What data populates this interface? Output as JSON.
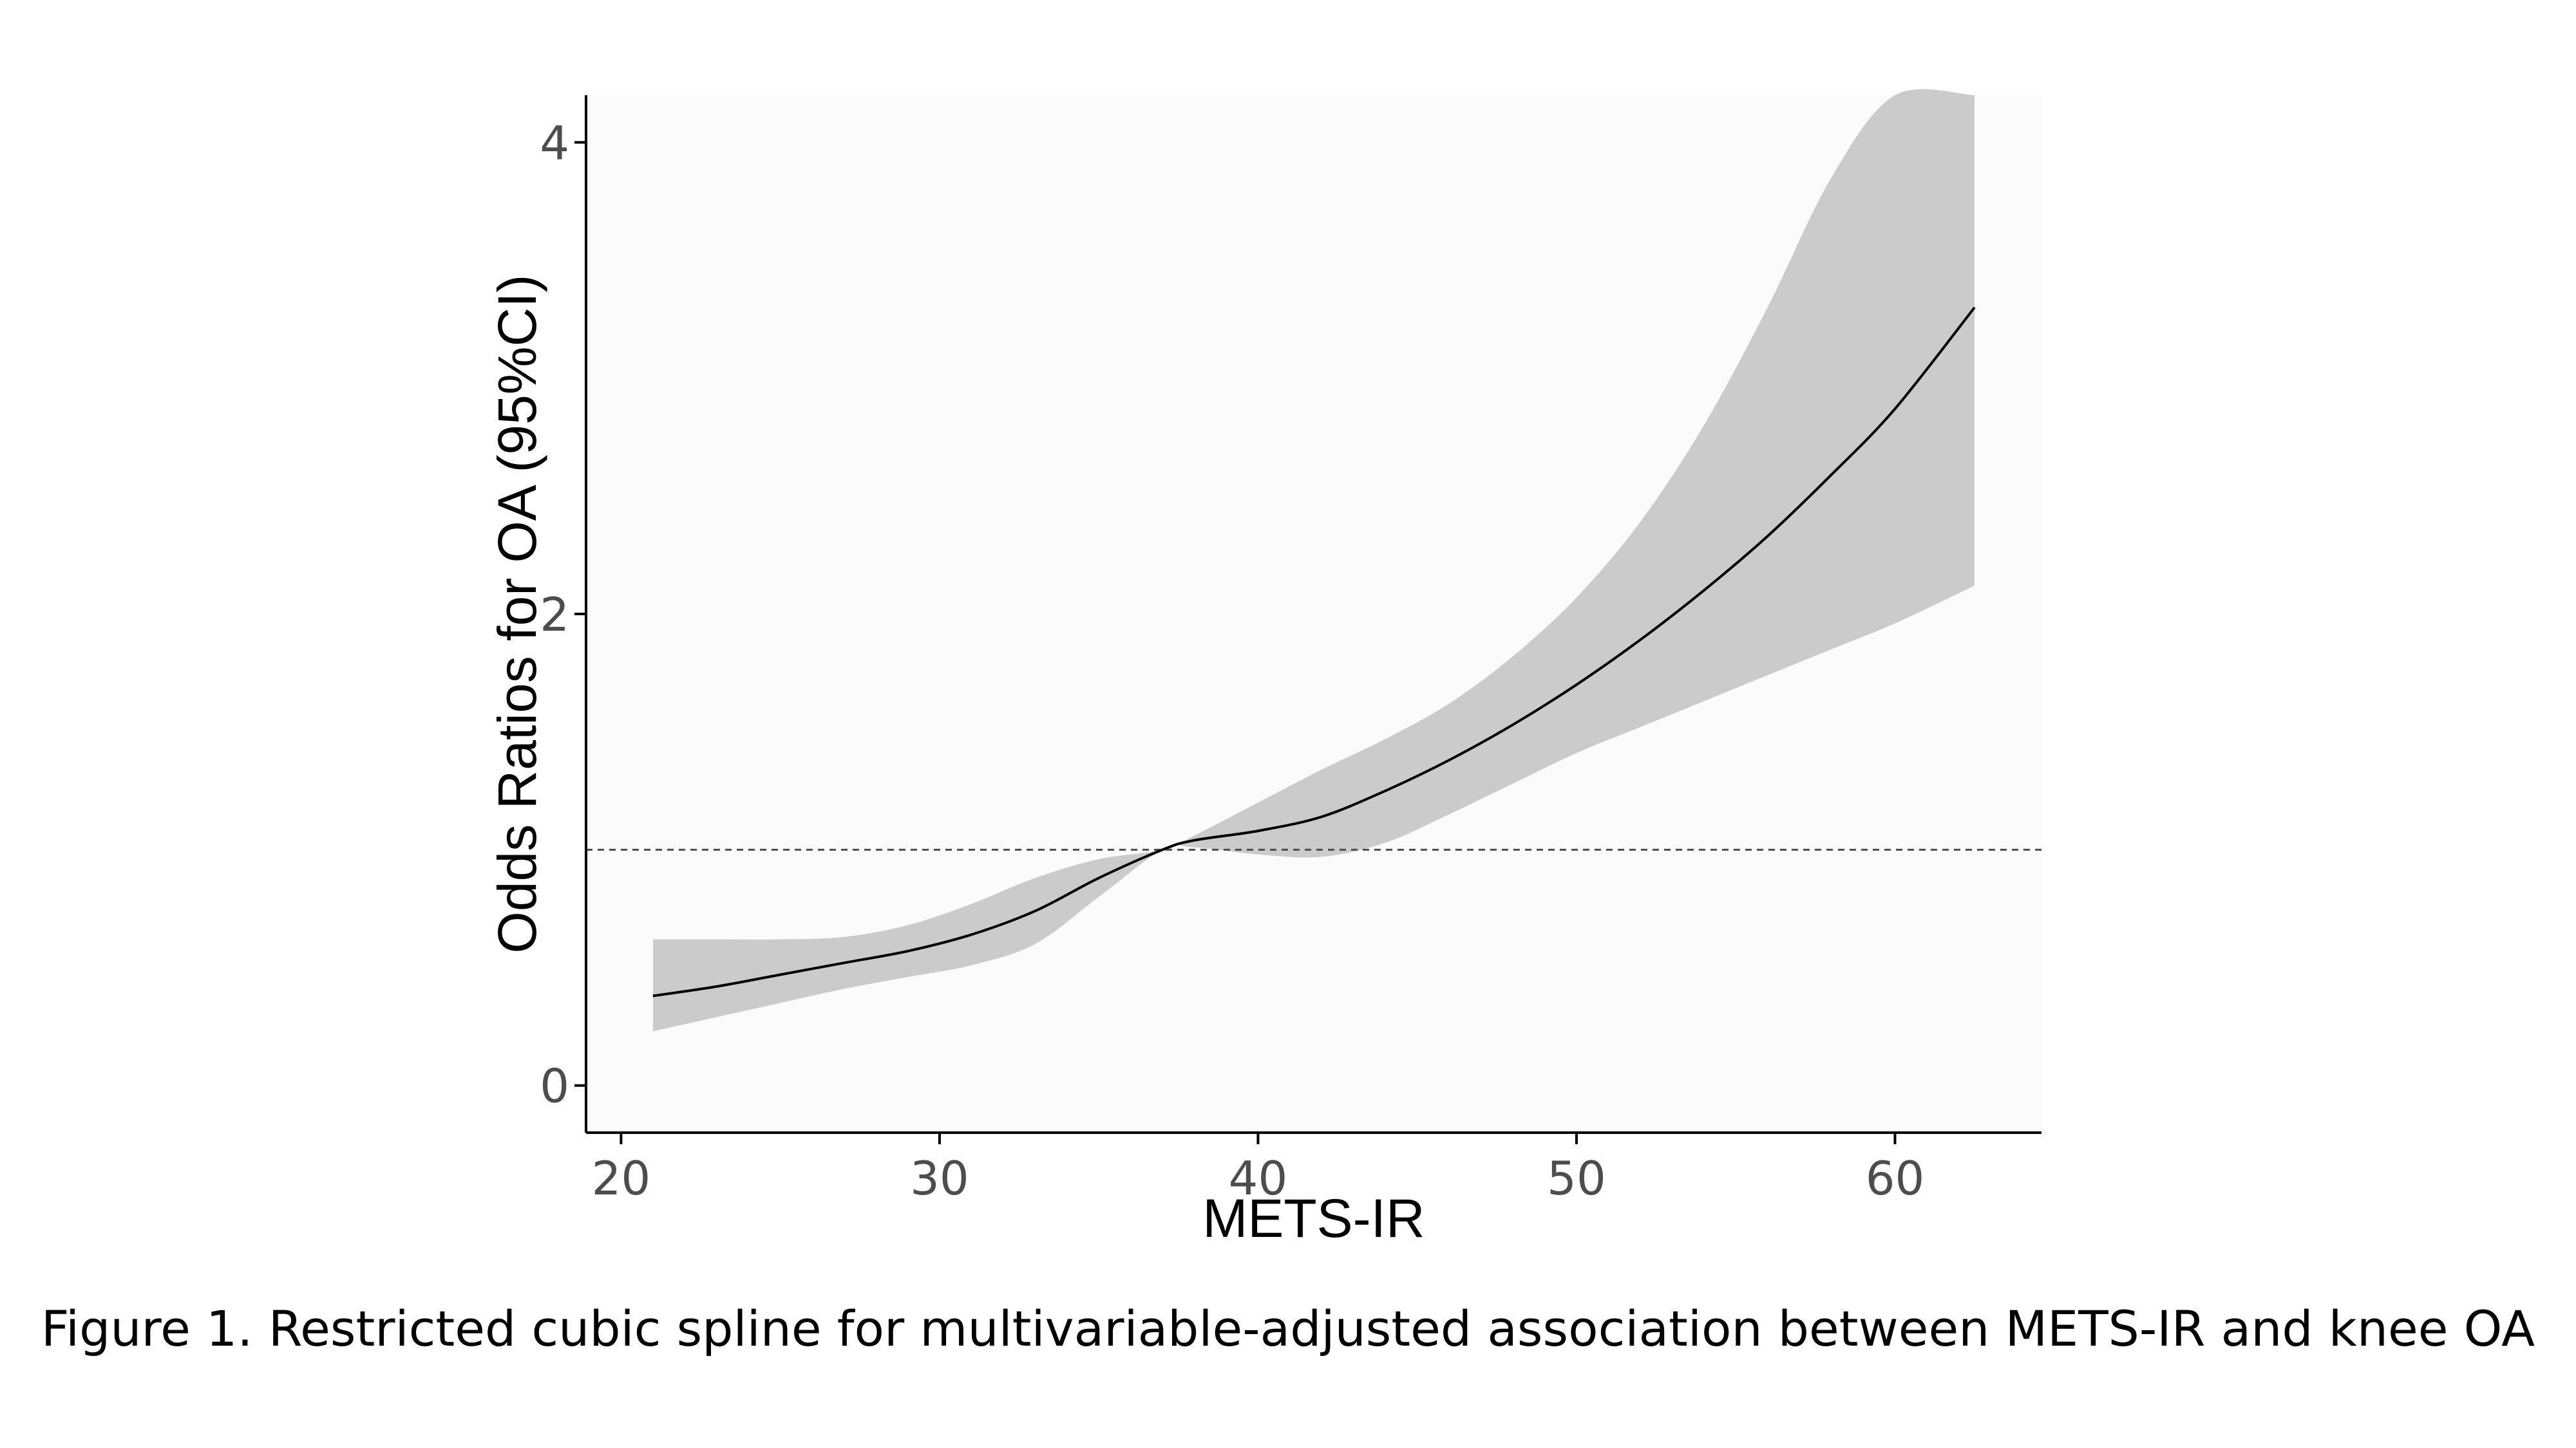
{
  "caption": "Figure 1. Restricted cubic spline for multivariable-adjusted association between METS-IR and knee OA",
  "colors": {
    "panel_background": "#fbfbfb",
    "ci_band": "#cbcbcb",
    "line": "#000000",
    "reference_line": "#4d4d4d",
    "axis": "#000000",
    "tick_text": "#4d4d4d"
  },
  "chart_data": {
    "type": "line",
    "xlabel": "METS-IR",
    "ylabel": "Odds Ratios for OA (95%CI)",
    "xlim": [
      18.9,
      64.6
    ],
    "ylim": [
      -0.2,
      4.2
    ],
    "x_ticks": [
      20,
      30,
      40,
      50,
      60
    ],
    "y_ticks": [
      0,
      2,
      4
    ],
    "grid": false,
    "reference_line": {
      "y": 1,
      "style": "dashed"
    },
    "series": [
      {
        "x": [
          21,
          23,
          25,
          27,
          29,
          31,
          33,
          35,
          37,
          38,
          40,
          42,
          44,
          46,
          48,
          50,
          52,
          54,
          56,
          58,
          60,
          62.5
        ],
        "y": [
          0.38,
          0.42,
          0.47,
          0.52,
          0.57,
          0.64,
          0.74,
          0.88,
          1.0,
          1.04,
          1.08,
          1.14,
          1.25,
          1.38,
          1.53,
          1.7,
          1.89,
          2.1,
          2.33,
          2.59,
          2.87,
          3.3
        ],
        "lower": [
          0.23,
          0.29,
          0.35,
          0.41,
          0.46,
          0.51,
          0.6,
          0.8,
          1.0,
          1.01,
          0.98,
          0.97,
          1.03,
          1.15,
          1.28,
          1.41,
          1.52,
          1.63,
          1.74,
          1.85,
          1.96,
          2.12
        ],
        "upper": [
          0.62,
          0.62,
          0.62,
          0.63,
          0.68,
          0.77,
          0.88,
          0.96,
          1.0,
          1.06,
          1.2,
          1.34,
          1.47,
          1.62,
          1.82,
          2.07,
          2.39,
          2.8,
          3.3,
          3.85,
          4.2,
          4.2
        ]
      }
    ]
  }
}
